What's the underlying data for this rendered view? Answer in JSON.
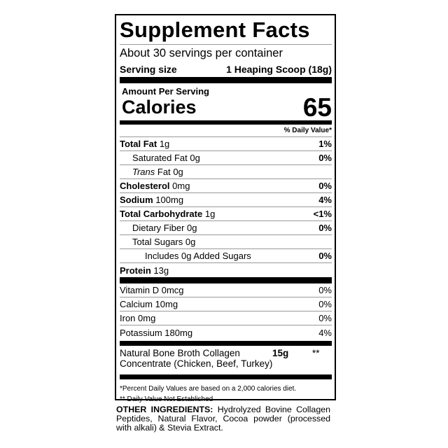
{
  "title": "Supplement Facts",
  "servings_per_container": "About 30 servings per container",
  "serving_size": {
    "label": "Serving size",
    "value": "1 Heaping Scoop (18g)"
  },
  "amount_per_serving": "Amount Per Serving",
  "calories": {
    "label": "Calories",
    "value": "65"
  },
  "daily_value_header": "% Daily Value*",
  "nutrients": [
    {
      "name": "Total Fat",
      "amount": "1g",
      "dv": "1%"
    },
    {
      "name": "Saturated Fat",
      "amount": "0g",
      "dv": "0%"
    },
    {
      "name": "Trans",
      "name_suffix": "Fat",
      "amount": "0g",
      "dv": ""
    },
    {
      "name": "Cholesterol",
      "amount": "0mg",
      "dv": "0%"
    },
    {
      "name": "Sodium",
      "amount": "100mg",
      "dv": "4%"
    },
    {
      "name": "Total Carbohydrate",
      "amount": "1g",
      "dv": "<1%"
    },
    {
      "name": "Dietary Fiber",
      "amount": "0g",
      "dv": "0%"
    },
    {
      "name": "Total Sugars",
      "amount": "0g",
      "dv": ""
    },
    {
      "name": "Includes 0g Added Sugars",
      "amount": "",
      "dv": "0%"
    },
    {
      "name": "Protein",
      "amount": "13g",
      "dv": ""
    }
  ],
  "vitamins": [
    {
      "name": "Vitamin D 0mcg",
      "dv": "0%"
    },
    {
      "name": "Calcium 10mg",
      "dv": "0%"
    },
    {
      "name": "Iron 0mg",
      "dv": "0%"
    },
    {
      "name": "Potassium 180mg",
      "dv": "4%"
    }
  ],
  "collagen": {
    "line1": "Natural Bone Broth Collagen",
    "line2": "Concentrate (Chicken, Beef, Turkey)",
    "amount": "15g",
    "dv": "**"
  },
  "footnotes": [
    "*Percent Daily Values are based on a 2,000 calories diet.",
    "** Daily Value Not Established"
  ],
  "other_ingredients": {
    "label": "OTHER INGREDIENTS:",
    "text": " Hydrolyzed Bovine Collagen Peptides, Natural Flavor, Cocoa powder (processed with alkali) & Stevia Extract."
  }
}
